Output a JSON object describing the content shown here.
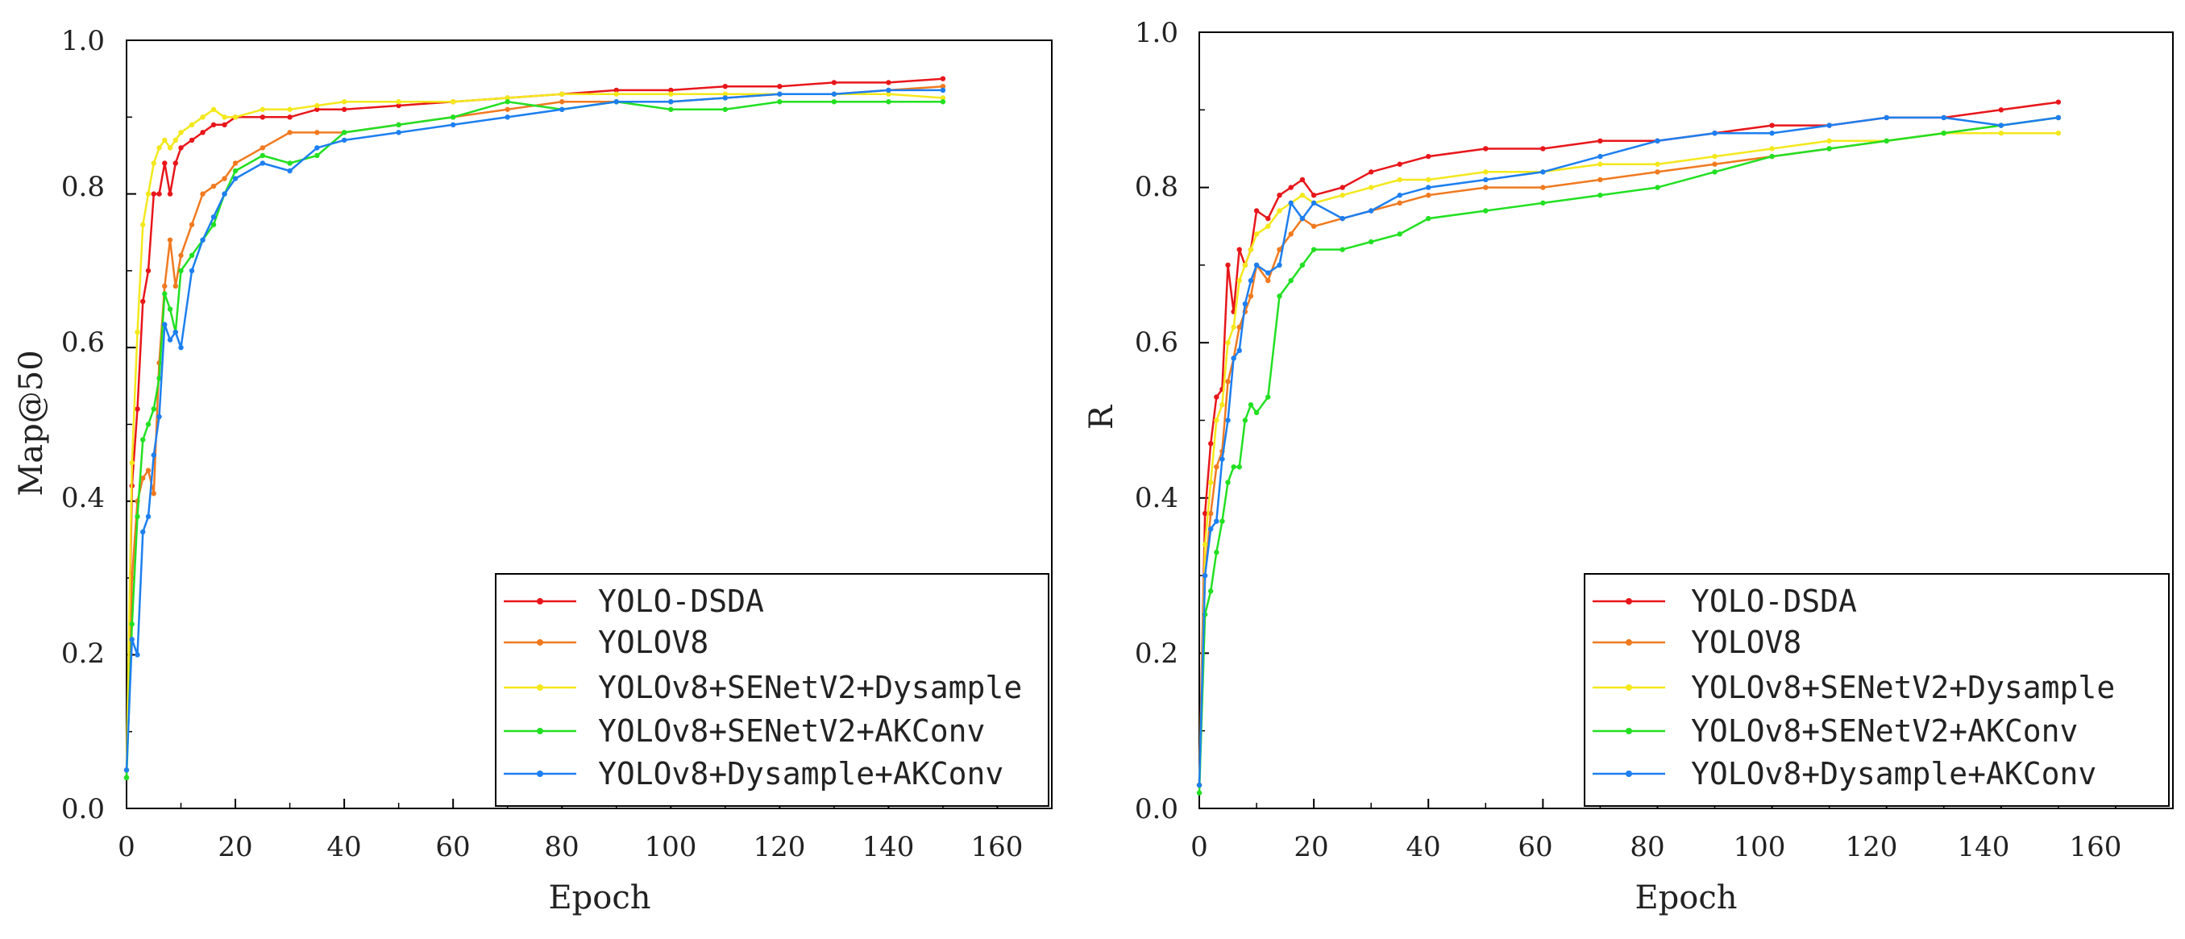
{
  "chart_data": [
    {
      "type": "line",
      "xlabel": "Epoch",
      "ylabel": "Map@50",
      "xlim": [
        0,
        170
      ],
      "ylim": [
        0.0,
        1.0
      ],
      "xticks": [
        0,
        20,
        40,
        60,
        80,
        100,
        120,
        140,
        160
      ],
      "yticks": [
        0.0,
        0.2,
        0.4,
        0.6,
        0.8,
        1.0
      ],
      "xtick_labels": [
        "0",
        "20",
        "40",
        "60",
        "80",
        "100",
        "120",
        "140",
        "160"
      ],
      "ytick_labels": [
        "0.0",
        "0.2",
        "0.4",
        "0.6",
        "0.8",
        "1.0"
      ],
      "legend_position": "bottom-right",
      "series": [
        {
          "name": "YOLO-DSDA",
          "color": "#e8161b",
          "x": [
            0,
            1,
            2,
            3,
            4,
            5,
            6,
            7,
            8,
            9,
            10,
            12,
            14,
            16,
            18,
            20,
            25,
            30,
            35,
            40,
            50,
            60,
            70,
            80,
            90,
            100,
            110,
            120,
            130,
            140,
            150
          ],
          "y": [
            0.04,
            0.42,
            0.52,
            0.66,
            0.7,
            0.8,
            0.8,
            0.84,
            0.8,
            0.84,
            0.86,
            0.87,
            0.88,
            0.89,
            0.89,
            0.9,
            0.9,
            0.9,
            0.91,
            0.91,
            0.915,
            0.92,
            0.925,
            0.93,
            0.935,
            0.935,
            0.94,
            0.94,
            0.945,
            0.945,
            0.95
          ]
        },
        {
          "name": "YOLOV8",
          "color": "#f07a20",
          "x": [
            0,
            1,
            2,
            3,
            4,
            5,
            6,
            7,
            8,
            9,
            10,
            12,
            14,
            16,
            18,
            20,
            25,
            30,
            35,
            40,
            50,
            60,
            70,
            80,
            90,
            100,
            110,
            120,
            130,
            140,
            150
          ],
          "y": [
            0.05,
            0.3,
            0.4,
            0.43,
            0.44,
            0.41,
            0.58,
            0.68,
            0.74,
            0.68,
            0.72,
            0.76,
            0.8,
            0.81,
            0.82,
            0.84,
            0.86,
            0.88,
            0.88,
            0.88,
            0.89,
            0.9,
            0.91,
            0.92,
            0.92,
            0.92,
            0.925,
            0.93,
            0.93,
            0.935,
            0.94
          ]
        },
        {
          "name": "YOLOv8+SENetV2+Dysample",
          "color": "#f4e81c",
          "x": [
            0,
            1,
            2,
            3,
            4,
            5,
            6,
            7,
            8,
            9,
            10,
            12,
            14,
            16,
            18,
            20,
            25,
            30,
            35,
            40,
            50,
            60,
            70,
            80,
            90,
            100,
            110,
            120,
            130,
            140,
            150
          ],
          "y": [
            0.05,
            0.45,
            0.62,
            0.76,
            0.8,
            0.84,
            0.86,
            0.87,
            0.86,
            0.87,
            0.88,
            0.89,
            0.9,
            0.91,
            0.9,
            0.9,
            0.91,
            0.91,
            0.915,
            0.92,
            0.92,
            0.92,
            0.925,
            0.93,
            0.93,
            0.93,
            0.93,
            0.93,
            0.93,
            0.93,
            0.925
          ]
        },
        {
          "name": "YOLOv8+SENetV2+AKConv",
          "color": "#22e022",
          "x": [
            0,
            1,
            2,
            3,
            4,
            5,
            6,
            7,
            8,
            9,
            10,
            12,
            14,
            16,
            18,
            20,
            25,
            30,
            35,
            40,
            50,
            60,
            70,
            80,
            90,
            100,
            110,
            120,
            130,
            140,
            150
          ],
          "y": [
            0.04,
            0.24,
            0.38,
            0.48,
            0.5,
            0.52,
            0.56,
            0.67,
            0.65,
            0.62,
            0.7,
            0.72,
            0.74,
            0.76,
            0.8,
            0.83,
            0.85,
            0.84,
            0.85,
            0.88,
            0.89,
            0.9,
            0.92,
            0.91,
            0.92,
            0.91,
            0.91,
            0.92,
            0.92,
            0.92,
            0.92
          ]
        },
        {
          "name": "YOLOv8+Dysample+AKConv",
          "color": "#1d7ff0",
          "x": [
            0,
            1,
            2,
            3,
            4,
            5,
            6,
            7,
            8,
            9,
            10,
            12,
            14,
            16,
            18,
            20,
            25,
            30,
            35,
            40,
            50,
            60,
            70,
            80,
            90,
            100,
            110,
            120,
            130,
            140,
            150
          ],
          "y": [
            0.05,
            0.22,
            0.2,
            0.36,
            0.38,
            0.46,
            0.51,
            0.63,
            0.61,
            0.62,
            0.6,
            0.7,
            0.74,
            0.77,
            0.8,
            0.82,
            0.84,
            0.83,
            0.86,
            0.87,
            0.88,
            0.89,
            0.9,
            0.91,
            0.92,
            0.92,
            0.925,
            0.93,
            0.93,
            0.935,
            0.935
          ]
        }
      ]
    },
    {
      "type": "line",
      "xlabel": "Epoch",
      "ylabel": "R",
      "xlim": [
        0,
        170
      ],
      "ylim": [
        0.0,
        1.0
      ],
      "xticks": [
        0,
        20,
        40,
        60,
        80,
        100,
        120,
        140,
        160
      ],
      "yticks": [
        0.0,
        0.2,
        0.4,
        0.6,
        0.8,
        1.0
      ],
      "xtick_labels": [
        "0",
        "20",
        "40",
        "60",
        "80",
        "100",
        "120",
        "140",
        "160"
      ],
      "ytick_labels": [
        "0.0",
        "0.2",
        "0.4",
        "0.6",
        "0.8",
        "1.0"
      ],
      "legend_position": "bottom-right",
      "series": [
        {
          "name": "YOLO-DSDA",
          "color": "#e8161b",
          "x": [
            0,
            1,
            2,
            3,
            4,
            5,
            6,
            7,
            8,
            9,
            10,
            12,
            14,
            16,
            18,
            20,
            25,
            30,
            35,
            40,
            50,
            60,
            70,
            80,
            90,
            100,
            110,
            120,
            130,
            140,
            150
          ],
          "y": [
            0.03,
            0.38,
            0.47,
            0.53,
            0.54,
            0.7,
            0.64,
            0.72,
            0.7,
            0.72,
            0.77,
            0.76,
            0.79,
            0.8,
            0.81,
            0.79,
            0.8,
            0.82,
            0.83,
            0.84,
            0.85,
            0.85,
            0.86,
            0.86,
            0.87,
            0.88,
            0.88,
            0.89,
            0.89,
            0.9,
            0.91
          ]
        },
        {
          "name": "YOLOV8",
          "color": "#f07a20",
          "x": [
            0,
            1,
            2,
            3,
            4,
            5,
            6,
            7,
            8,
            9,
            10,
            12,
            14,
            16,
            18,
            20,
            25,
            30,
            35,
            40,
            50,
            60,
            70,
            80,
            90,
            100,
            110,
            120,
            130,
            140,
            150
          ],
          "y": [
            0.03,
            0.3,
            0.38,
            0.44,
            0.46,
            0.55,
            0.58,
            0.62,
            0.64,
            0.66,
            0.7,
            0.68,
            0.72,
            0.74,
            0.76,
            0.75,
            0.76,
            0.77,
            0.78,
            0.79,
            0.8,
            0.8,
            0.81,
            0.82,
            0.83,
            0.84,
            0.85,
            0.86,
            0.87,
            0.88,
            0.89
          ]
        },
        {
          "name": "YOLOv8+SENetV2+Dysample",
          "color": "#f4e81c",
          "x": [
            0,
            1,
            2,
            3,
            4,
            5,
            6,
            7,
            8,
            9,
            10,
            12,
            14,
            16,
            18,
            20,
            25,
            30,
            35,
            40,
            50,
            60,
            70,
            80,
            90,
            100,
            110,
            120,
            130,
            140,
            150
          ],
          "y": [
            0.03,
            0.34,
            0.42,
            0.5,
            0.52,
            0.6,
            0.62,
            0.68,
            0.7,
            0.72,
            0.74,
            0.75,
            0.77,
            0.78,
            0.79,
            0.78,
            0.79,
            0.8,
            0.81,
            0.81,
            0.82,
            0.82,
            0.83,
            0.83,
            0.84,
            0.85,
            0.86,
            0.86,
            0.87,
            0.87,
            0.87
          ]
        },
        {
          "name": "YOLOv8+SENetV2+AKConv",
          "color": "#22e022",
          "x": [
            0,
            1,
            2,
            3,
            4,
            5,
            6,
            7,
            8,
            9,
            10,
            12,
            14,
            16,
            18,
            20,
            25,
            30,
            35,
            40,
            50,
            60,
            70,
            80,
            90,
            100,
            110,
            120,
            130,
            140,
            150
          ],
          "y": [
            0.02,
            0.25,
            0.28,
            0.33,
            0.37,
            0.42,
            0.44,
            0.44,
            0.5,
            0.52,
            0.51,
            0.53,
            0.66,
            0.68,
            0.7,
            0.72,
            0.72,
            0.73,
            0.74,
            0.76,
            0.77,
            0.78,
            0.79,
            0.8,
            0.82,
            0.84,
            0.85,
            0.86,
            0.87,
            0.88,
            0.89
          ]
        },
        {
          "name": "YOLOv8+Dysample+AKConv",
          "color": "#1d7ff0",
          "x": [
            0,
            1,
            2,
            3,
            4,
            5,
            6,
            7,
            8,
            9,
            10,
            12,
            14,
            16,
            18,
            20,
            25,
            30,
            35,
            40,
            50,
            60,
            70,
            80,
            90,
            100,
            110,
            120,
            130,
            140,
            150
          ],
          "y": [
            0.03,
            0.3,
            0.36,
            0.37,
            0.45,
            0.5,
            0.58,
            0.59,
            0.65,
            0.68,
            0.7,
            0.69,
            0.7,
            0.78,
            0.76,
            0.78,
            0.76,
            0.77,
            0.79,
            0.8,
            0.81,
            0.82,
            0.84,
            0.86,
            0.87,
            0.87,
            0.88,
            0.89,
            0.89,
            0.88,
            0.89
          ]
        }
      ]
    }
  ]
}
